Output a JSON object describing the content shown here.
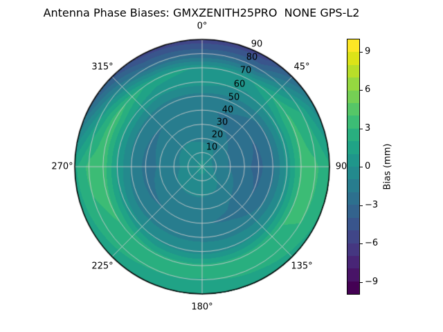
{
  "title": "Antenna Phase Biases: GMXZENITH25PRO  NONE GPS-L2",
  "colors": {
    "background": "#ffffff",
    "grid_line": "#cccccc",
    "outline": "#000000",
    "text": "#000000"
  },
  "chart_data": {
    "type": "heatmap",
    "subtype": "polar_filled_contour",
    "title": "Antenna Phase Biases: GMXZENITH25PRO  NONE GPS-L2",
    "projection": "polar",
    "theta_zero_location": "top",
    "theta_direction": "clockwise",
    "theta_tick_labels": [
      "0°",
      "45°",
      "90",
      "135°",
      "180°",
      "225°",
      "270°",
      "315°"
    ],
    "radial_tick_labels": [
      "10",
      "20",
      "30",
      "40",
      "50",
      "60",
      "70",
      "80",
      "90"
    ],
    "radial_range": [
      0,
      90
    ],
    "grid": true,
    "colormap": "viridis",
    "contour_level_step_mm": 1,
    "value_range_mm": [
      -10,
      10
    ],
    "colormap_colors": [
      "#440154",
      "#481467",
      "#482576",
      "#453781",
      "#404688",
      "#39558c",
      "#33638d",
      "#2d708e",
      "#287d8e",
      "#238a8d",
      "#1f968b",
      "#20a386",
      "#29af7f",
      "#3cbc75",
      "#56c667",
      "#75d054",
      "#95d840",
      "#b8de29",
      "#dce318",
      "#fde725"
    ],
    "colorbar": {
      "label": "Bias (mm)",
      "tick_labels": [
        "9",
        "6",
        "3",
        "0",
        "−3",
        "−6",
        "−9"
      ],
      "tick_values": [
        9,
        6,
        3,
        0,
        -3,
        -6,
        -9
      ],
      "range": [
        -10,
        10
      ],
      "position": "right"
    },
    "azimuth_deg": [
      0,
      30,
      60,
      90,
      120,
      150,
      180,
      210,
      240,
      270,
      300,
      330
    ],
    "zenith_deg": [
      0,
      10,
      20,
      30,
      40,
      50,
      60,
      70,
      80,
      90
    ],
    "bias_mm": [
      [
        0.3,
        -0.3,
        -1.2,
        -1.6,
        -1.8,
        -1.4,
        0.5,
        0.8,
        -3.2,
        -5.7
      ],
      [
        0.3,
        -0.6,
        -1.5,
        -2.0,
        -2.2,
        -1.5,
        -0.2,
        1.0,
        -3.0,
        -5.6
      ],
      [
        0.3,
        -1.4,
        -2.0,
        -2.5,
        -3.0,
        -2.2,
        0.6,
        3.2,
        1.8,
        -1.0
      ],
      [
        0.3,
        -1.6,
        -2.1,
        -2.8,
        -3.3,
        -2.2,
        0.4,
        3.4,
        3.2,
        2.2
      ],
      [
        0.3,
        -1.0,
        -1.6,
        -2.4,
        -3.0,
        -2.0,
        0.3,
        3.1,
        3.0,
        1.8
      ],
      [
        0.3,
        -0.4,
        -1.1,
        -1.8,
        -2.2,
        -1.4,
        -0.2,
        2.6,
        2.3,
        1.3
      ],
      [
        0.3,
        -0.3,
        -0.9,
        -1.6,
        -1.9,
        -1.2,
        -0.5,
        2.5,
        1.9,
        1.0
      ],
      [
        0.3,
        -0.3,
        -0.9,
        -1.6,
        -1.9,
        -1.3,
        -0.2,
        2.4,
        2.1,
        1.2
      ],
      [
        0.3,
        -0.4,
        -1.0,
        -1.7,
        -2.1,
        -1.6,
        0.4,
        3.1,
        2.6,
        1.5
      ],
      [
        0.3,
        -0.6,
        -1.3,
        -1.9,
        -2.3,
        -1.2,
        0.8,
        3.7,
        3.4,
        1.8
      ],
      [
        0.3,
        -0.5,
        -1.1,
        -1.8,
        -2.1,
        -1.4,
        0.9,
        3.7,
        0.5,
        -3.2
      ],
      [
        0.3,
        -0.4,
        -1.0,
        -1.6,
        -1.9,
        -1.5,
        0.3,
        1.6,
        -2.6,
        -5.4
      ]
    ]
  }
}
